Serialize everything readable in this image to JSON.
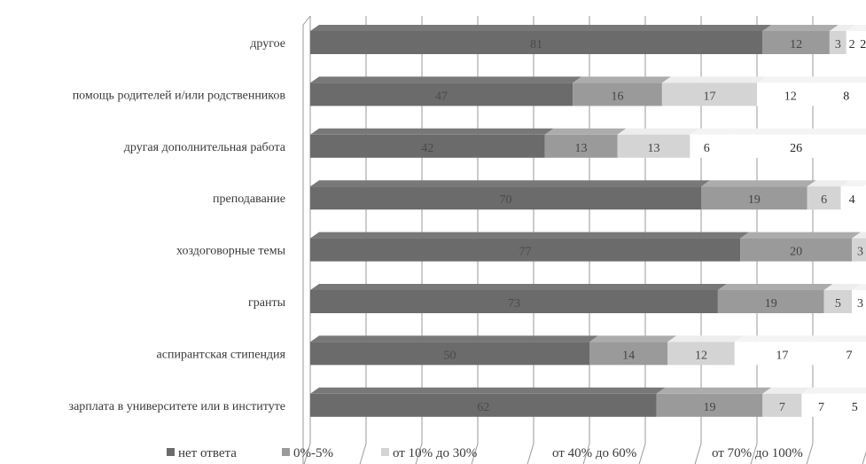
{
  "chart_data": {
    "type": "bar",
    "orientation": "horizontal",
    "stacked": true,
    "title": "",
    "xlabel": "",
    "ylabel": "",
    "xlim": [
      0,
      100
    ],
    "grid": true,
    "legend_position": "bottom",
    "categories": [
      "другое",
      "помощь родителей и/или родственников",
      "другая дополнительная работа",
      "преподавание",
      "хоздоговорные темы",
      "гранты",
      "аспирантская стипендия",
      "зарплата в университете или в институте"
    ],
    "series": [
      {
        "name": "нет ответа",
        "color": "#6b6b6b",
        "label_color": "#4a4a4a",
        "values": [
          81,
          47,
          42,
          70,
          77,
          73,
          50,
          62
        ]
      },
      {
        "name": "0%-5%",
        "color": "#9a9a9a",
        "label_color": "#444444",
        "values": [
          12,
          16,
          13,
          19,
          20,
          19,
          14,
          19
        ]
      },
      {
        "name": "от 10% до 30%",
        "color": "#d4d4d4",
        "label_color": "#444444",
        "values": [
          3,
          17,
          13,
          6,
          3,
          5,
          12,
          7
        ]
      },
      {
        "name": "от 40% до 60%",
        "color": "#ffffff",
        "label_color": "#333333",
        "values": [
          2,
          12,
          6,
          4,
          null,
          3,
          17,
          7
        ]
      },
      {
        "name": "от 70% до 100%",
        "color": "#ffffff",
        "label_color": "#222222",
        "values": [
          2,
          8,
          26,
          null,
          null,
          null,
          7,
          5
        ]
      }
    ]
  }
}
